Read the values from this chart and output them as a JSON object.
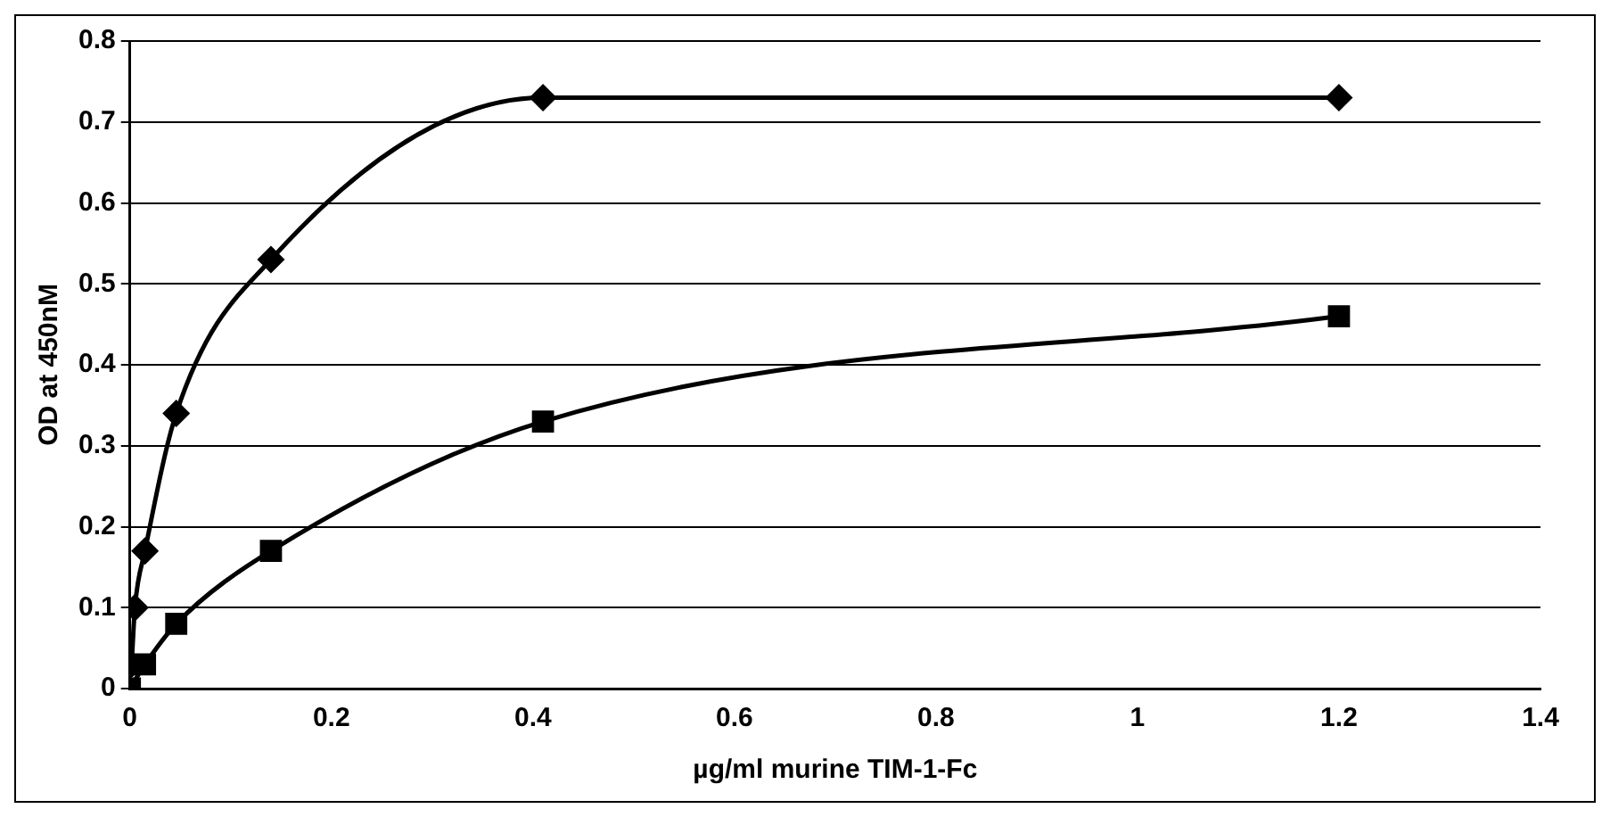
{
  "chart_data": {
    "type": "line",
    "xlabel": "µg/ml murine TIM-1-Fc",
    "ylabel": "OD at 450nM",
    "xlim": [
      0,
      1.4
    ],
    "xticks": [
      0,
      0.2,
      0.4,
      0.6,
      0.8,
      1,
      1.2,
      1.4
    ],
    "ylim": [
      0,
      0.8
    ],
    "yticks": [
      0,
      0.1,
      0.2,
      0.3,
      0.4,
      0.5,
      0.6,
      0.7,
      0.8
    ],
    "grid": "y",
    "legend": false,
    "series": [
      {
        "color": "#000000",
        "marker": "diamond",
        "x": [
          0.0017,
          0.005,
          0.015,
          0.046,
          0.14,
          0.41,
          1.2
        ],
        "values": [
          0.03,
          0.1,
          0.17,
          0.34,
          0.53,
          0.73,
          0.73
        ]
      },
      {
        "color": "#000000",
        "marker": "square",
        "x": [
          0,
          0.005,
          0.015,
          0.046,
          0.14,
          0.41,
          1.2
        ],
        "values": [
          0,
          null,
          0.03,
          0.08,
          0.17,
          0.33,
          0.46
        ]
      }
    ]
  }
}
